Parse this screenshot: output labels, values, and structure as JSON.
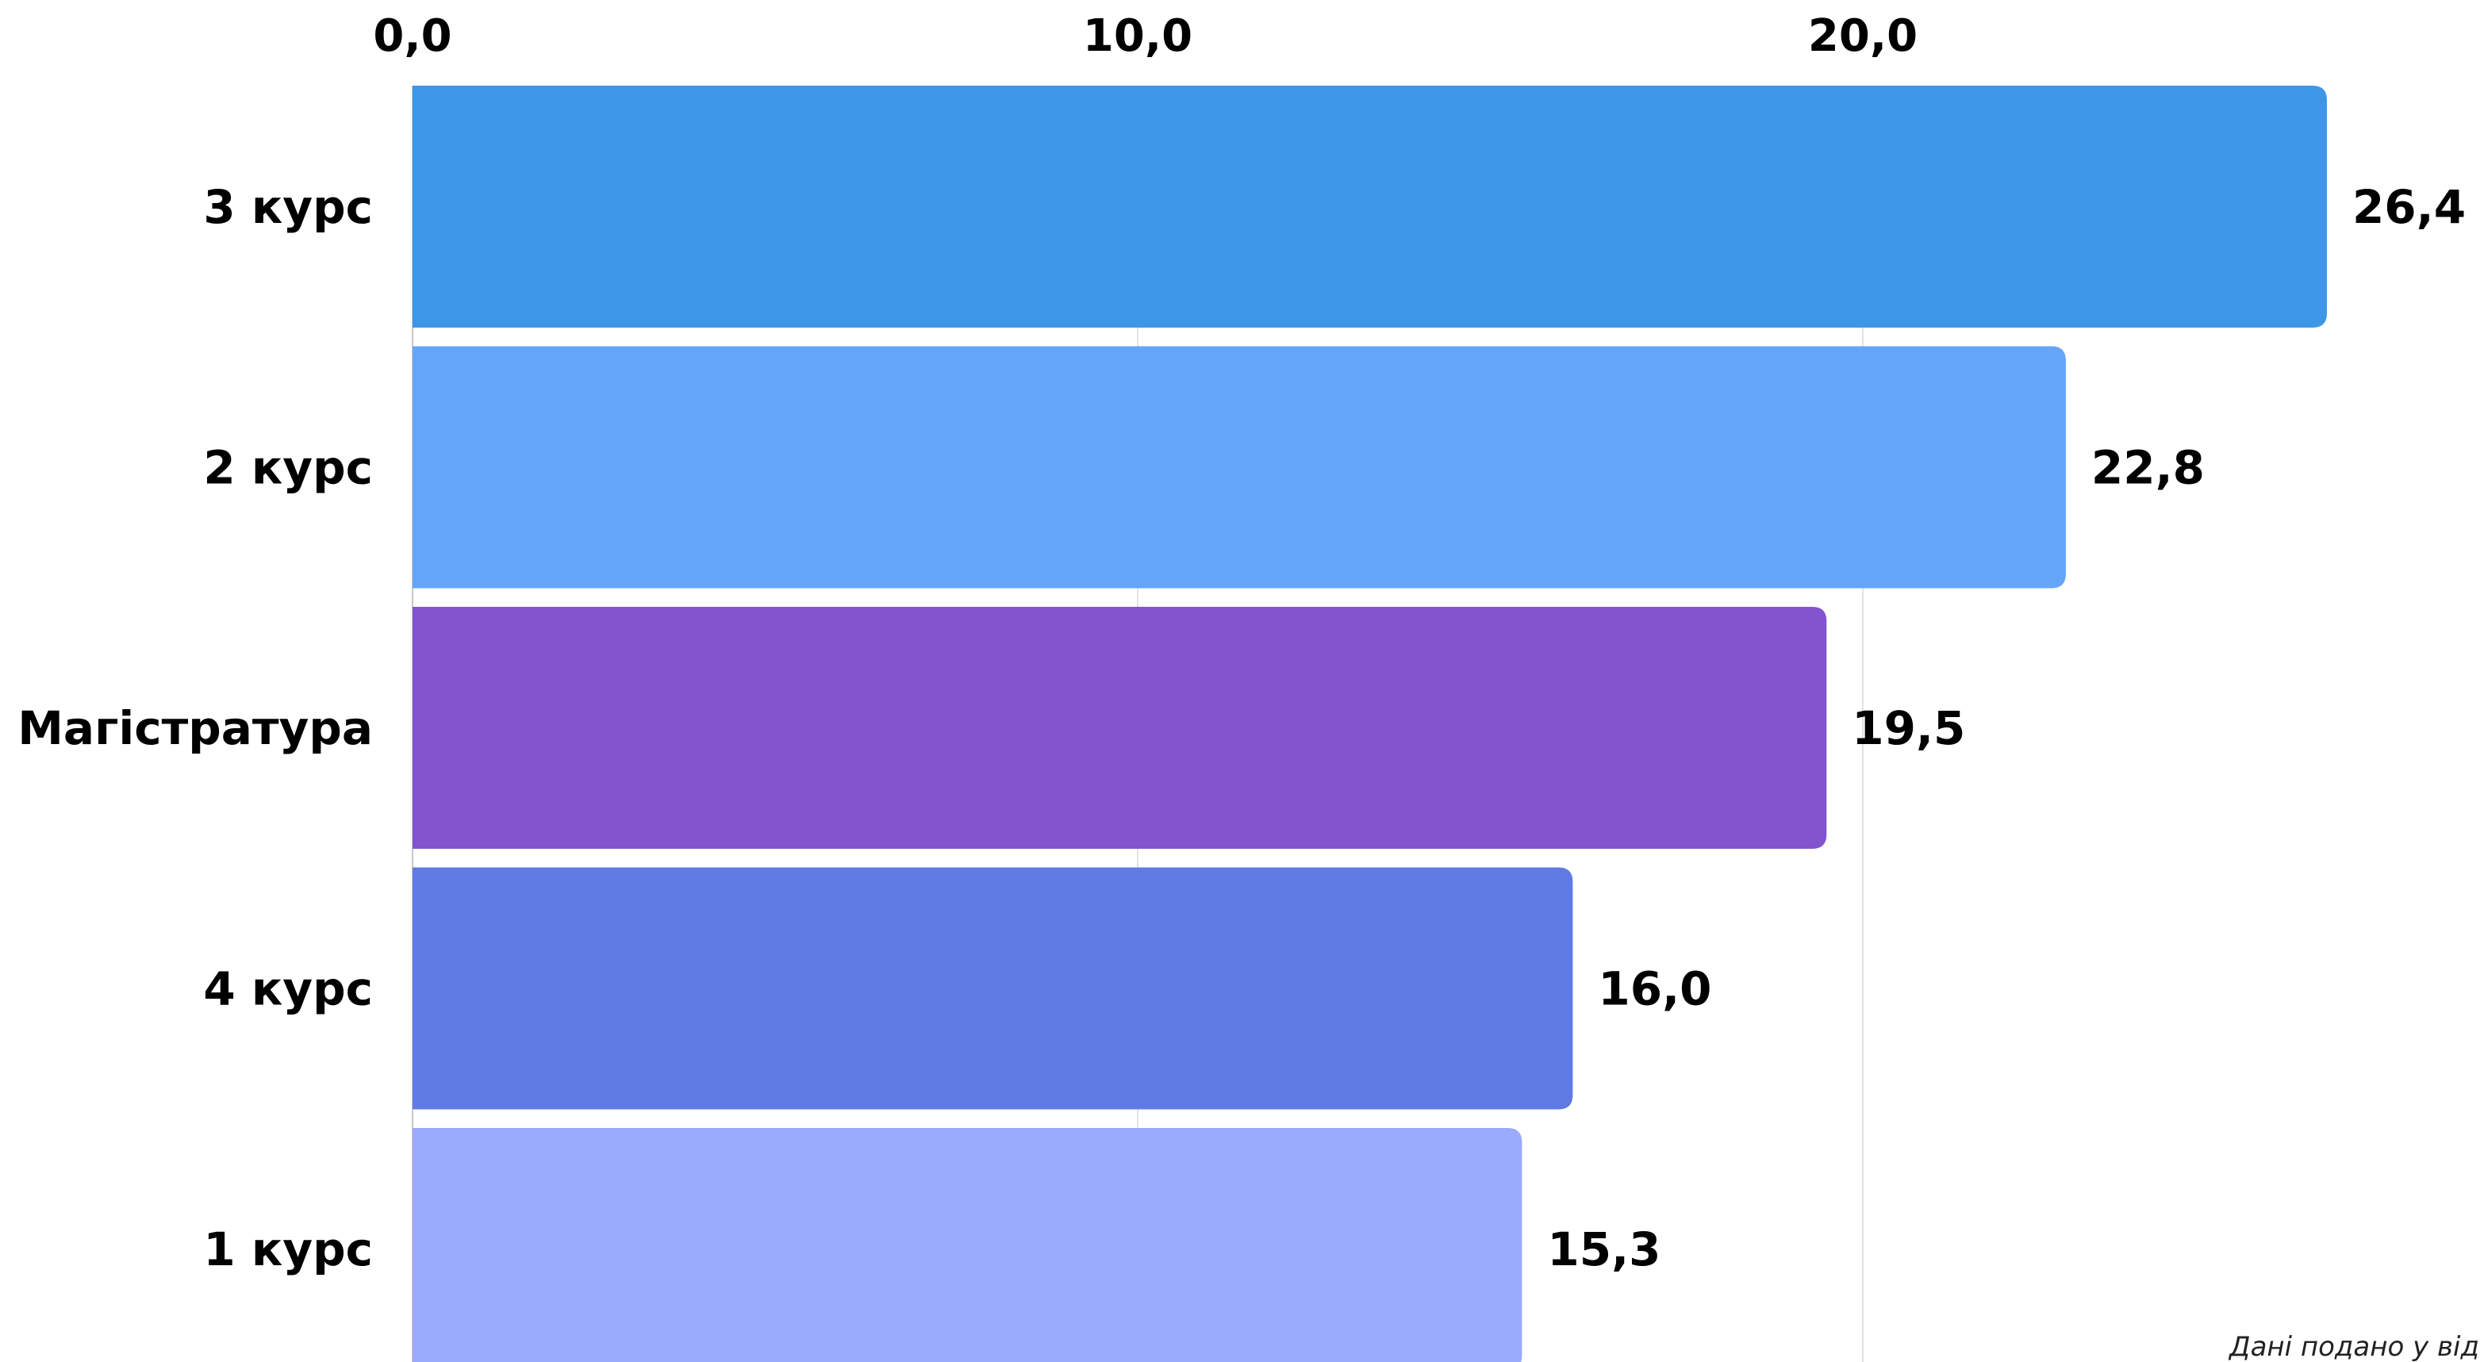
{
  "chart_data": {
    "type": "bar",
    "orientation": "horizontal",
    "categories": [
      "3 курс",
      "2 курс",
      "Магістратура",
      "4 курс",
      "1 курс"
    ],
    "values": [
      26.4,
      22.8,
      19.5,
      16.0,
      15.3
    ],
    "value_labels": [
      "26,4",
      "22,8",
      "19,5",
      "16,0",
      "15,3"
    ],
    "bar_colors": [
      "#3d96e6",
      "#64a5f9",
      "#8354cd",
      "#607ae4",
      "#9aabfe"
    ],
    "x_axis": {
      "position": "top",
      "ticks": [
        0,
        10,
        20
      ],
      "tick_labels": [
        "0,0",
        "10,0",
        "20,0"
      ],
      "range": [
        0,
        30
      ]
    },
    "grid": "vertical",
    "legend": "none",
    "title": "",
    "xlabel": "",
    "ylabel": ""
  },
  "footnote": "Дані подано у від"
}
